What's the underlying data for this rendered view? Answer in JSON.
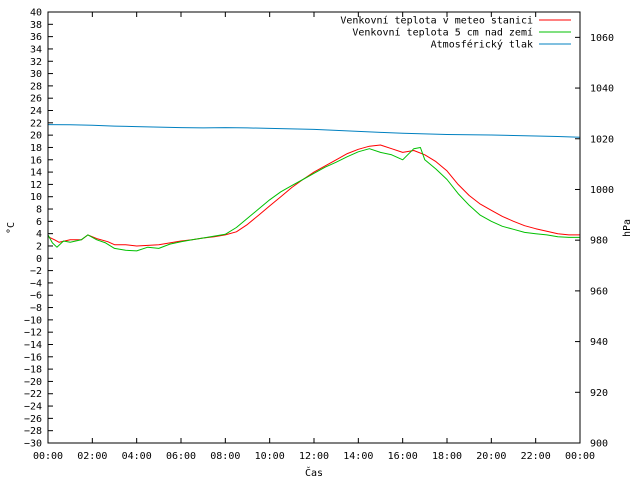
{
  "chart_data": {
    "type": "line",
    "xlabel": "Čas",
    "ylabel_left": "°C",
    "ylabel_right": "hPa",
    "x_ticks": [
      "00:00",
      "02:00",
      "04:00",
      "06:00",
      "08:00",
      "10:00",
      "12:00",
      "14:00",
      "16:00",
      "18:00",
      "20:00",
      "22:00",
      "00:00"
    ],
    "x_range_hours": [
      0,
      24
    ],
    "y_left_range": [
      -30,
      40
    ],
    "y_left_ticks": [
      40,
      38,
      36,
      34,
      32,
      30,
      28,
      26,
      24,
      22,
      20,
      18,
      16,
      14,
      12,
      10,
      8,
      6,
      4,
      2,
      0,
      -2,
      -4,
      -6,
      -8,
      -10,
      -12,
      -14,
      -16,
      -18,
      -20,
      -22,
      -24,
      -26,
      -28,
      -30
    ],
    "y_right_range": [
      900,
      1070
    ],
    "y_right_ticks": [
      1060,
      1040,
      1020,
      1000,
      980,
      960,
      940,
      920,
      900
    ],
    "legend_position": "top-right",
    "series": [
      {
        "name": "Venkovní teplota v meteo stanici",
        "color": "#ff0000",
        "axis": "left",
        "points": [
          [
            0,
            3.5
          ],
          [
            0.3,
            3.0
          ],
          [
            0.5,
            2.6
          ],
          [
            1.0,
            3.0
          ],
          [
            1.5,
            3.0
          ],
          [
            1.8,
            3.8
          ],
          [
            2.2,
            3.2
          ],
          [
            2.7,
            2.7
          ],
          [
            3.0,
            2.2
          ],
          [
            3.5,
            2.2
          ],
          [
            4.0,
            2.0
          ],
          [
            4.5,
            2.1
          ],
          [
            5.0,
            2.2
          ],
          [
            5.5,
            2.5
          ],
          [
            6.0,
            2.8
          ],
          [
            6.5,
            3.0
          ],
          [
            7.0,
            3.3
          ],
          [
            7.5,
            3.5
          ],
          [
            8.0,
            3.8
          ],
          [
            8.5,
            4.3
          ],
          [
            9.0,
            5.5
          ],
          [
            9.5,
            7.0
          ],
          [
            10.0,
            8.5
          ],
          [
            10.5,
            10.0
          ],
          [
            11.0,
            11.5
          ],
          [
            11.5,
            12.8
          ],
          [
            12.0,
            14.0
          ],
          [
            12.5,
            15.0
          ],
          [
            13.0,
            16.0
          ],
          [
            13.5,
            17.0
          ],
          [
            14.0,
            17.7
          ],
          [
            14.5,
            18.2
          ],
          [
            15.0,
            18.4
          ],
          [
            15.5,
            17.8
          ],
          [
            16.0,
            17.2
          ],
          [
            16.5,
            17.5
          ],
          [
            17.0,
            16.8
          ],
          [
            17.5,
            15.7
          ],
          [
            18.0,
            14.2
          ],
          [
            18.5,
            12.0
          ],
          [
            19.0,
            10.2
          ],
          [
            19.5,
            8.8
          ],
          [
            20.0,
            7.8
          ],
          [
            20.5,
            6.8
          ],
          [
            21.0,
            6.0
          ],
          [
            21.5,
            5.3
          ],
          [
            22.0,
            4.8
          ],
          [
            22.5,
            4.4
          ],
          [
            23.0,
            4.0
          ],
          [
            23.5,
            3.8
          ],
          [
            24.0,
            3.8
          ]
        ]
      },
      {
        "name": "Venkovní teplota 5 cm nad zemí",
        "color": "#00c000",
        "axis": "left",
        "points": [
          [
            0,
            3.8
          ],
          [
            0.2,
            2.5
          ],
          [
            0.4,
            1.8
          ],
          [
            0.7,
            2.8
          ],
          [
            1.0,
            2.6
          ],
          [
            1.5,
            3.0
          ],
          [
            1.8,
            3.8
          ],
          [
            2.2,
            3.0
          ],
          [
            2.6,
            2.5
          ],
          [
            3.0,
            1.6
          ],
          [
            3.5,
            1.3
          ],
          [
            4.0,
            1.2
          ],
          [
            4.5,
            1.8
          ],
          [
            5.0,
            1.6
          ],
          [
            5.5,
            2.3
          ],
          [
            6.0,
            2.7
          ],
          [
            6.5,
            3.0
          ],
          [
            7.0,
            3.3
          ],
          [
            7.5,
            3.6
          ],
          [
            8.0,
            3.9
          ],
          [
            8.5,
            5.0
          ],
          [
            9.0,
            6.5
          ],
          [
            9.5,
            8.0
          ],
          [
            10.0,
            9.5
          ],
          [
            10.5,
            10.8
          ],
          [
            11.0,
            11.8
          ],
          [
            11.5,
            12.8
          ],
          [
            12.0,
            13.8
          ],
          [
            12.5,
            14.8
          ],
          [
            13.0,
            15.6
          ],
          [
            13.5,
            16.5
          ],
          [
            14.0,
            17.3
          ],
          [
            14.5,
            17.8
          ],
          [
            15.0,
            17.2
          ],
          [
            15.5,
            16.8
          ],
          [
            16.0,
            16.0
          ],
          [
            16.5,
            17.8
          ],
          [
            16.8,
            18.0
          ],
          [
            17.0,
            16.0
          ],
          [
            17.5,
            14.5
          ],
          [
            18.0,
            12.8
          ],
          [
            18.5,
            10.5
          ],
          [
            19.0,
            8.6
          ],
          [
            19.5,
            7.0
          ],
          [
            20.0,
            6.0
          ],
          [
            20.5,
            5.2
          ],
          [
            21.0,
            4.7
          ],
          [
            21.5,
            4.2
          ],
          [
            22.0,
            4.0
          ],
          [
            22.5,
            3.8
          ],
          [
            23.0,
            3.5
          ],
          [
            23.5,
            3.4
          ],
          [
            24.0,
            3.4
          ]
        ]
      },
      {
        "name": "Atmosférický tlak",
        "color": "#0080c0",
        "axis": "right",
        "points": [
          [
            0,
            1025.6
          ],
          [
            1.0,
            1025.5
          ],
          [
            2.0,
            1025.3
          ],
          [
            3.0,
            1025.0
          ],
          [
            4.0,
            1024.8
          ],
          [
            5.0,
            1024.6
          ],
          [
            6.0,
            1024.4
          ],
          [
            7.0,
            1024.3
          ],
          [
            8.0,
            1024.4
          ],
          [
            9.0,
            1024.3
          ],
          [
            10.0,
            1024.1
          ],
          [
            11.0,
            1023.9
          ],
          [
            12.0,
            1023.7
          ],
          [
            13.0,
            1023.3
          ],
          [
            14.0,
            1022.9
          ],
          [
            15.0,
            1022.5
          ],
          [
            16.0,
            1022.2
          ],
          [
            17.0,
            1021.9
          ],
          [
            18.0,
            1021.7
          ],
          [
            19.0,
            1021.6
          ],
          [
            20.0,
            1021.5
          ],
          [
            21.0,
            1021.3
          ],
          [
            22.0,
            1021.1
          ],
          [
            23.0,
            1020.9
          ],
          [
            24.0,
            1020.6
          ]
        ]
      }
    ]
  }
}
